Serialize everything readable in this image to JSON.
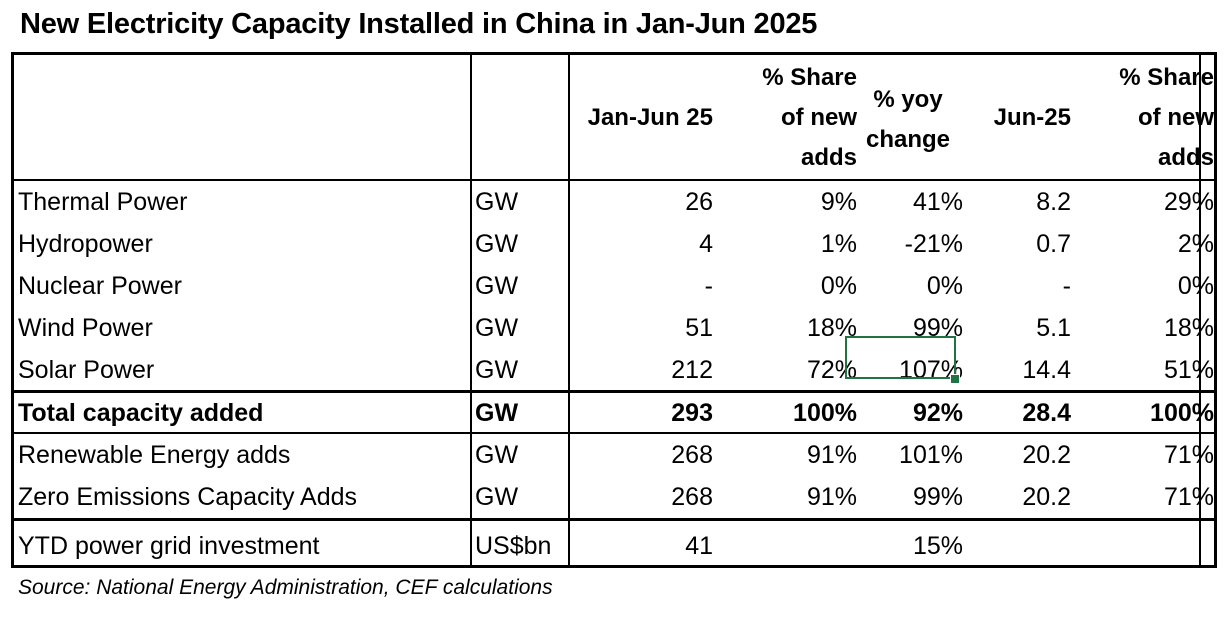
{
  "title": "New Electricity Capacity Installed in China in Jan-Jun 2025",
  "headers": {
    "jan_jun": "Jan-Jun 25",
    "share_ytd": [
      "% Share",
      "of new",
      "adds"
    ],
    "yoy": [
      "% yoy",
      "change"
    ],
    "jun": "Jun-25",
    "share_jun": [
      "% Share",
      "of new",
      "adds"
    ]
  },
  "rows": [
    {
      "label": "Thermal Power",
      "unit": "GW",
      "ytd": "26",
      "share": "9%",
      "yoy": "41%",
      "jun": "8.2",
      "jun_share": "29%"
    },
    {
      "label": "Hydropower",
      "unit": "GW",
      "ytd": "4",
      "share": "1%",
      "yoy": "-21%",
      "jun": "0.7",
      "jun_share": "2%"
    },
    {
      "label": "Nuclear Power",
      "unit": "GW",
      "ytd": "-",
      "share": "0%",
      "yoy": "0%",
      "jun": "-",
      "jun_share": "0%"
    },
    {
      "label": "Wind Power",
      "unit": "GW",
      "ytd": "51",
      "share": "18%",
      "yoy": "99%",
      "jun": "5.1",
      "jun_share": "18%"
    },
    {
      "label": "Solar Power",
      "unit": "GW",
      "ytd": "212",
      "share": "72%",
      "yoy": "107%",
      "jun": "14.4",
      "jun_share": "51%"
    },
    {
      "label": "Total capacity added",
      "unit": "GW",
      "ytd": "293",
      "share": "100%",
      "yoy": "92%",
      "jun": "28.4",
      "jun_share": "100%"
    },
    {
      "label": "Renewable Energy adds",
      "unit": "GW",
      "ytd": "268",
      "share": "91%",
      "yoy": "101%",
      "jun": "20.2",
      "jun_share": "71%"
    },
    {
      "label": "Zero Emissions Capacity Adds",
      "unit": "GW",
      "ytd": "268",
      "share": "91%",
      "yoy": "99%",
      "jun": "20.2",
      "jun_share": "71%"
    },
    {
      "label": "YTD power grid investment",
      "unit": "US$bn",
      "ytd": "41",
      "share": "",
      "yoy": "15%",
      "jun": "",
      "jun_share": ""
    }
  ],
  "source": "Source: National Energy Administration, CEF calculations",
  "colors": {
    "selection": "#217346",
    "border": "#000000"
  }
}
